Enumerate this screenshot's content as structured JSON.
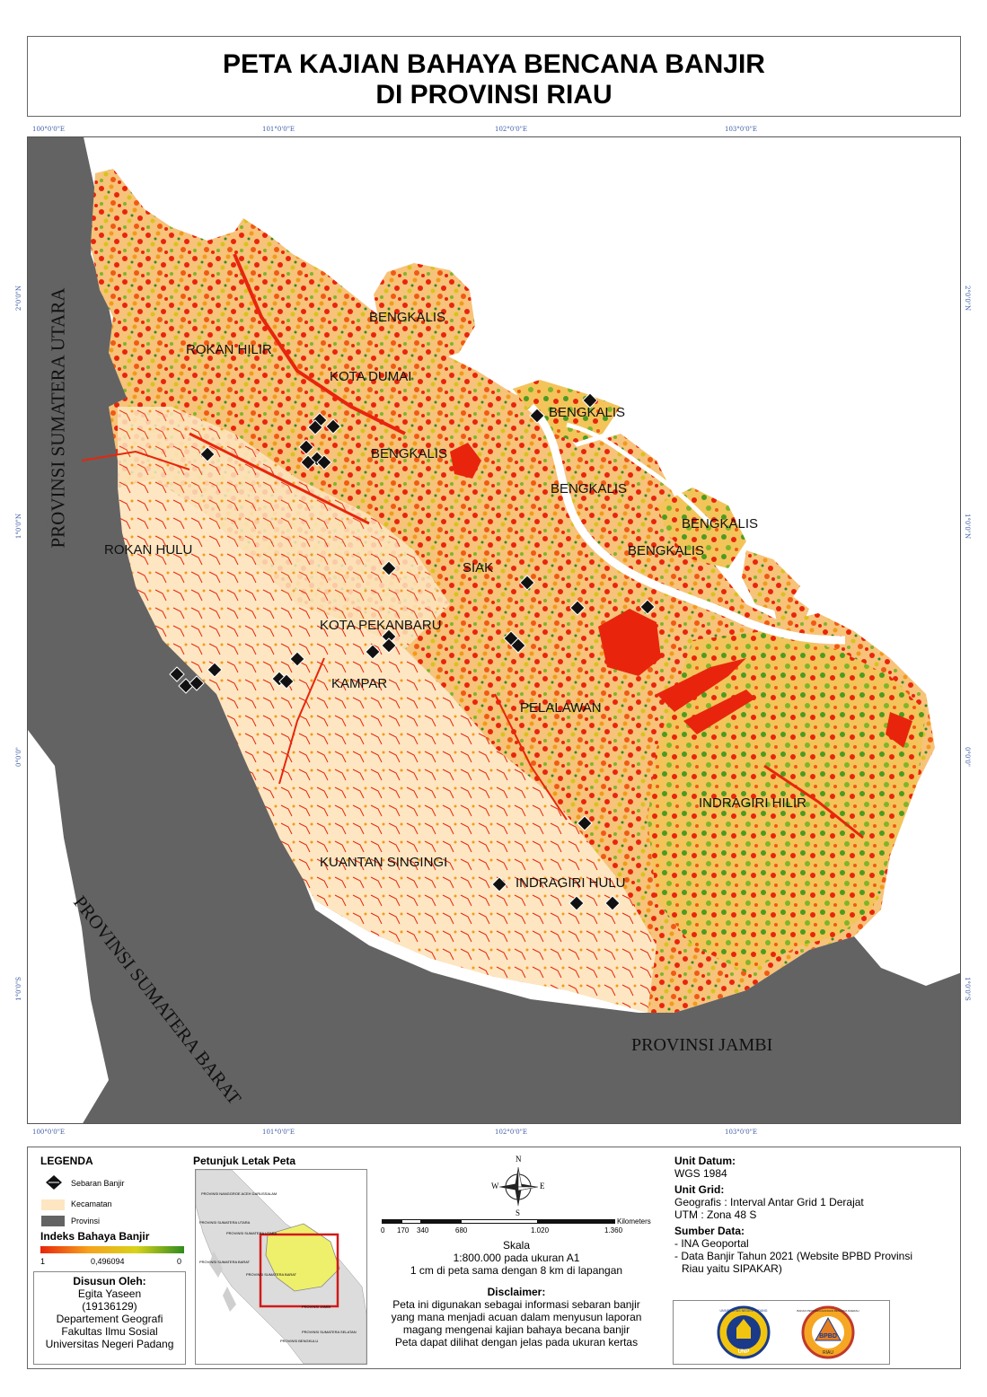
{
  "title": {
    "line1": "PETA KAJIAN BAHAYA BENCANA BANJIR",
    "line2": "DI PROVINSI RIAU"
  },
  "coordinates": {
    "top": [
      "100°0'0\"E",
      "101°0'0\"E",
      "102°0'0\"E",
      "103°0'0\"E"
    ],
    "bottom": [
      "100°0'0\"E",
      "101°0'0\"E",
      "102°0'0\"E",
      "103°0'0\"E"
    ],
    "left": [
      "2°0'0\"N",
      "1°0'0\"N",
      "0°0'0\"",
      "1°0'0\"S"
    ],
    "right": [
      "2°0'0\"N",
      "1°0'0\"N",
      "0°0'0\"",
      "1°0'0\"S"
    ]
  },
  "provinces": {
    "sumut": "PROVINSI SUMATERA UTARA",
    "sumbar": "PROVINSI SUMATERA BARAT",
    "jambi": "PROVINSI JAMBI"
  },
  "districts": [
    "BENGKALIS",
    "ROKAN HILIR",
    "KOTA DUMAI",
    "BENGKALIS",
    "BENGKALIS",
    "BENGKALIS",
    "BENGKALIS",
    "BENGKALIS",
    "ROKAN HULU",
    "SIAK",
    "KOTA PEKANBARU",
    "KAMPAR",
    "PELALAWAN",
    "INDRAGIRI HILIR",
    "KUANTAN SINGINGI",
    "INDRAGIRI HULU"
  ],
  "colors": {
    "province_fill": "#636363",
    "kecamatan_fill": "#fde6c1",
    "hazard_high": "#e8250c",
    "hazard_mid": "#f6a21c",
    "hazard_low": "#2e8b1f",
    "inset_highlight": "#d11a1a"
  },
  "legend": {
    "title": "LEGENDA",
    "items": [
      {
        "label": "Sebaran Banjir",
        "icon": "flood-marker-icon"
      },
      {
        "label": "Kecamatan",
        "color": "#fde6c1"
      },
      {
        "label": "Provinsi",
        "color": "#636363"
      }
    ],
    "index_title": "Indeks Bahaya Banjir",
    "index_left": "1",
    "index_mid": "0,496094",
    "index_right": "0"
  },
  "author": {
    "title": "Disusun Oleh:",
    "lines": [
      "Egita Yaseen",
      "(19136129)",
      "Departement Geografi",
      "Fakultas Ilmu Sosial",
      "Universitas Negeri Padang"
    ]
  },
  "inset": {
    "title": "Petunjuk Letak Peta",
    "labels": [
      "PROVINSI NANGGROE ACEH DARUSSALAM",
      "PROVINSI SUMATERA UTARA",
      "PROVINSI SUMATERA UTARA",
      "PROVINSI SUMATERA BARAT",
      "PROVINSI SUMATERA BARAT",
      "PROVINSI JAMBI",
      "PROVINSI SUMATERA SELATAN",
      "PROVINSI BENGKULU"
    ]
  },
  "scale": {
    "north": "N",
    "south": "S",
    "east": "E",
    "west": "W",
    "ticks": [
      "0",
      "170",
      "340",
      "680",
      "1.020",
      "1.360"
    ],
    "unit": "Kilometers",
    "label": "Skala",
    "ratio": "1:800.000 pada ukuran A1",
    "conversion": "1 cm di peta sama dengan 8 km di lapangan"
  },
  "disclaimer": {
    "title": "Disclaimer:",
    "lines": [
      "Peta ini digunakan sebagai informasi sebaran banjir",
      "yang mana menjadi acuan dalam menyusun laporan",
      "magang mengenai kajian bahaya becana banjir",
      "Peta dapat dilihat dengan jelas pada ukuran kertas"
    ]
  },
  "info": {
    "datum_title": "Unit Datum:",
    "datum": "WGS 1984",
    "grid_title": "Unit Grid:",
    "grid_lines": [
      "Geografis : Interval Antar Grid 1 Derajat",
      "UTM : Zona 48 S"
    ],
    "source_title": "Sumber Data:",
    "source_lines": [
      "- INA Geoportal",
      "- Data Banjir Tahun 2021 (Website BPBD Provinsi",
      "Riau yaitu SIPAKAR)"
    ]
  },
  "logos": {
    "unp_text": "UNP",
    "unp_ring": "UNIVERSITAS NEGERI PADANG",
    "bpbd_text": "BPBD",
    "bpbd_sub": "RIAU",
    "bpbd_ring": "BADAN PENANGGULANGAN BENCANA DAERAH"
  }
}
